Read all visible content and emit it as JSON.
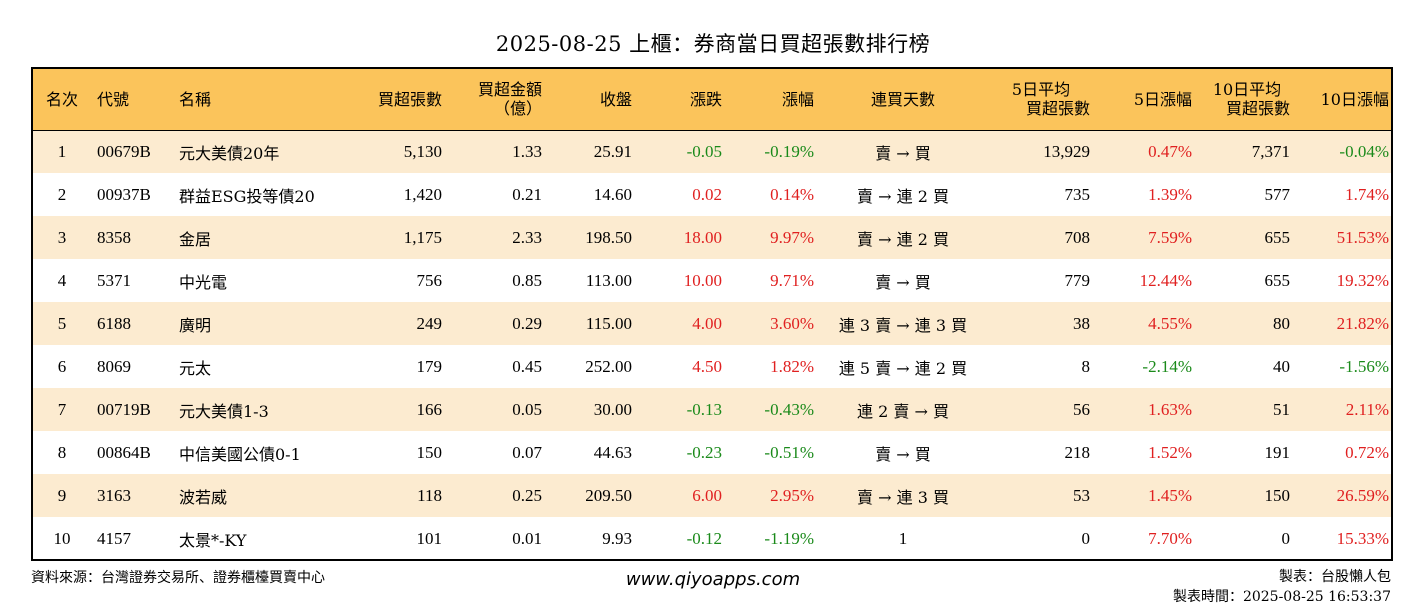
{
  "title": "2025-08-25 上櫃：券商當日買超張數排行榜",
  "headers": {
    "rank": "名次",
    "code": "代號",
    "name": "名稱",
    "net_buy_lots": "買超張數",
    "net_buy_amount_1": "買超金額",
    "net_buy_amount_2": "（億）",
    "close": "收盤",
    "change": "漲跌",
    "change_pct": "漲幅",
    "consecutive_days": "連買天數",
    "avg5_1": "5日平均",
    "avg5_2": "買超張數",
    "pct5": "5日漲幅",
    "avg10_1": "10日平均",
    "avg10_2": "買超張數",
    "pct10": "10日漲幅"
  },
  "rows": [
    {
      "rank": "1",
      "code": "00679B",
      "name": "元大美債20年",
      "lots": "5,130",
      "amount": "1.33",
      "close": "25.91",
      "change": "-0.05",
      "change_pct": "-0.19%",
      "days": "賣 → 買",
      "avg5": "13,929",
      "pct5": "0.47%",
      "avg10": "7,371",
      "pct10": "-0.04%"
    },
    {
      "rank": "2",
      "code": "00937B",
      "name": "群益ESG投等債20",
      "lots": "1,420",
      "amount": "0.21",
      "close": "14.60",
      "change": "0.02",
      "change_pct": "0.14%",
      "days": "賣 → 連 2 買",
      "avg5": "735",
      "pct5": "1.39%",
      "avg10": "577",
      "pct10": "1.74%"
    },
    {
      "rank": "3",
      "code": "8358",
      "name": "金居",
      "lots": "1,175",
      "amount": "2.33",
      "close": "198.50",
      "change": "18.00",
      "change_pct": "9.97%",
      "days": "賣 → 連 2 買",
      "avg5": "708",
      "pct5": "7.59%",
      "avg10": "655",
      "pct10": "51.53%"
    },
    {
      "rank": "4",
      "code": "5371",
      "name": "中光電",
      "lots": "756",
      "amount": "0.85",
      "close": "113.00",
      "change": "10.00",
      "change_pct": "9.71%",
      "days": "賣 → 買",
      "avg5": "779",
      "pct5": "12.44%",
      "avg10": "655",
      "pct10": "19.32%"
    },
    {
      "rank": "5",
      "code": "6188",
      "name": "廣明",
      "lots": "249",
      "amount": "0.29",
      "close": "115.00",
      "change": "4.00",
      "change_pct": "3.60%",
      "days": "連 3 賣 → 連 3 買",
      "avg5": "38",
      "pct5": "4.55%",
      "avg10": "80",
      "pct10": "21.82%"
    },
    {
      "rank": "6",
      "code": "8069",
      "name": "元太",
      "lots": "179",
      "amount": "0.45",
      "close": "252.00",
      "change": "4.50",
      "change_pct": "1.82%",
      "days": "連 5 賣 → 連 2 買",
      "avg5": "8",
      "pct5": "-2.14%",
      "avg10": "40",
      "pct10": "-1.56%"
    },
    {
      "rank": "7",
      "code": "00719B",
      "name": "元大美債1-3",
      "lots": "166",
      "amount": "0.05",
      "close": "30.00",
      "change": "-0.13",
      "change_pct": "-0.43%",
      "days": "連 2 賣 → 買",
      "avg5": "56",
      "pct5": "1.63%",
      "avg10": "51",
      "pct10": "2.11%"
    },
    {
      "rank": "8",
      "code": "00864B",
      "name": "中信美國公債0-1",
      "lots": "150",
      "amount": "0.07",
      "close": "44.63",
      "change": "-0.23",
      "change_pct": "-0.51%",
      "days": "賣 → 買",
      "avg5": "218",
      "pct5": "1.52%",
      "avg10": "191",
      "pct10": "0.72%"
    },
    {
      "rank": "9",
      "code": "3163",
      "name": "波若威",
      "lots": "118",
      "amount": "0.25",
      "close": "209.50",
      "change": "6.00",
      "change_pct": "2.95%",
      "days": "賣 → 連 3 買",
      "avg5": "53",
      "pct5": "1.45%",
      "avg10": "150",
      "pct10": "26.59%"
    },
    {
      "rank": "10",
      "code": "4157",
      "name": "太景*-KY",
      "lots": "101",
      "amount": "0.01",
      "close": "9.93",
      "change": "-0.12",
      "change_pct": "-1.19%",
      "days": "1",
      "avg5": "0",
      "pct5": "7.70%",
      "avg10": "0",
      "pct10": "15.33%"
    }
  ],
  "footer": {
    "source": "資料來源：台灣證券交易所、證券櫃檯買賣中心",
    "website": "www.qiyoapps.com",
    "maker": "製表：台股懶人包",
    "made_time": "製表時間：2025-08-25 16:53:37"
  },
  "colors": {
    "header_bg": "#fbc45b",
    "odd_row_bg": "#fcebd0",
    "up": "#e02020",
    "down": "#1a8a1a"
  }
}
